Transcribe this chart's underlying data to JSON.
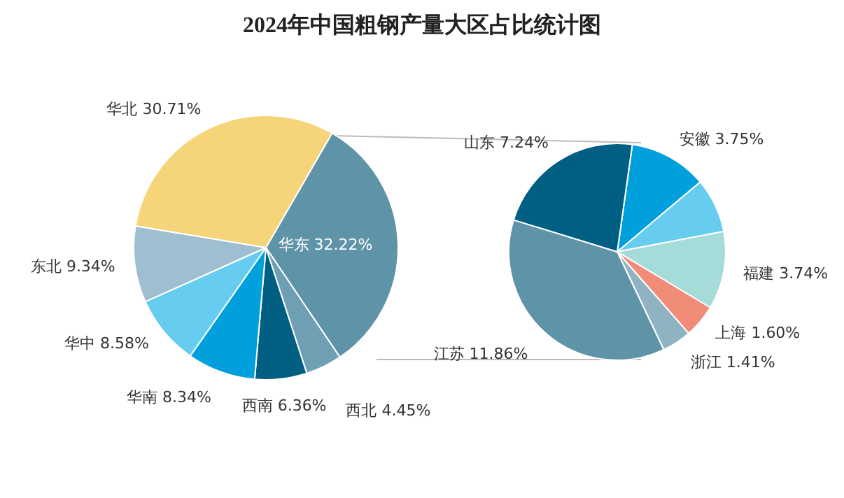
{
  "chart_data": [
    {
      "type": "pie",
      "title": "2024年中国粗钢产量大区占比统计图",
      "categories": [
        "华东",
        "西北",
        "西南",
        "华南",
        "华中",
        "东北",
        "华北"
      ],
      "values": [
        32.22,
        4.45,
        6.36,
        8.34,
        8.58,
        9.34,
        30.71
      ],
      "colors": [
        "#5f93a8",
        "#6f9fb3",
        "#005f82",
        "#00a0dc",
        "#66cdf0",
        "#9dbfcf",
        "#f5d47a"
      ],
      "value_labels": [
        "32.22%",
        "4.45%",
        "6.36%",
        "8.34%",
        "8.58%",
        "9.34%",
        "30.71%"
      ]
    },
    {
      "type": "pie",
      "categories": [
        "安徽",
        null,
        "福建",
        "上海",
        "浙江",
        "江苏",
        "山东"
      ],
      "values": [
        3.75,
        2.62,
        3.74,
        1.6,
        1.41,
        11.86,
        7.24
      ],
      "colors": [
        "#00a0dc",
        "#66cdf0",
        "#a5dcd9",
        "#f08c78",
        "#8fb3c2",
        "#5f93a8",
        "#005f82"
      ],
      "value_labels": [
        "3.75%",
        null,
        "3.74%",
        "1.60%",
        "1.41%",
        "11.86%",
        "7.24%"
      ]
    }
  ]
}
